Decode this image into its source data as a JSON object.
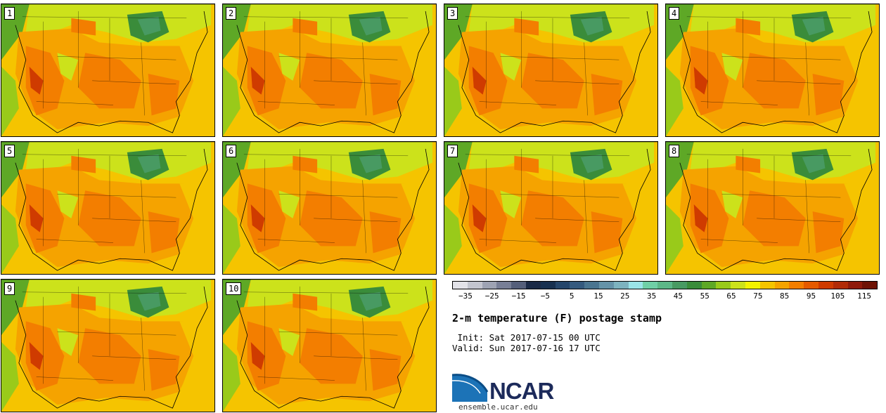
{
  "panels": [
    {
      "label": "1"
    },
    {
      "label": "2"
    },
    {
      "label": "3"
    },
    {
      "label": "4"
    },
    {
      "label": "5"
    },
    {
      "label": "6"
    },
    {
      "label": "7"
    },
    {
      "label": "8"
    },
    {
      "label": "9"
    },
    {
      "label": "10"
    }
  ],
  "colorbar": {
    "colors": [
      "#e2e2e8",
      "#c3c5cf",
      "#9ea3b3",
      "#787f96",
      "#555f7a",
      "#1b2a46",
      "#17304f",
      "#25466b",
      "#355a7e",
      "#4a7590",
      "#6593a8",
      "#7db3bf",
      "#9ae4e8",
      "#6fcfa6",
      "#5cb787",
      "#489a62",
      "#3a8c3a",
      "#5ea826",
      "#99ca1a",
      "#cce21b",
      "#f3f300",
      "#f5c400",
      "#f5a300",
      "#f37e00",
      "#e55a00",
      "#cf3b00",
      "#b12b07",
      "#8f1a0a",
      "#6e1305"
    ],
    "tick_labels": [
      "−35",
      "−25",
      "−15",
      "−5",
      "5",
      "15",
      "25",
      "35",
      "45",
      "55",
      "65",
      "75",
      "85",
      "95",
      "105",
      "115"
    ],
    "range": [
      -40,
      120
    ]
  },
  "title": "2-m temperature (F) postage stamp",
  "init_line": " Init: Sat 2017-07-15 00 UTC",
  "valid_line": "Valid: Sun 2017-07-16 17 UTC",
  "logo": {
    "text": "NCAR",
    "site": "ensemble.ucar.edu"
  }
}
